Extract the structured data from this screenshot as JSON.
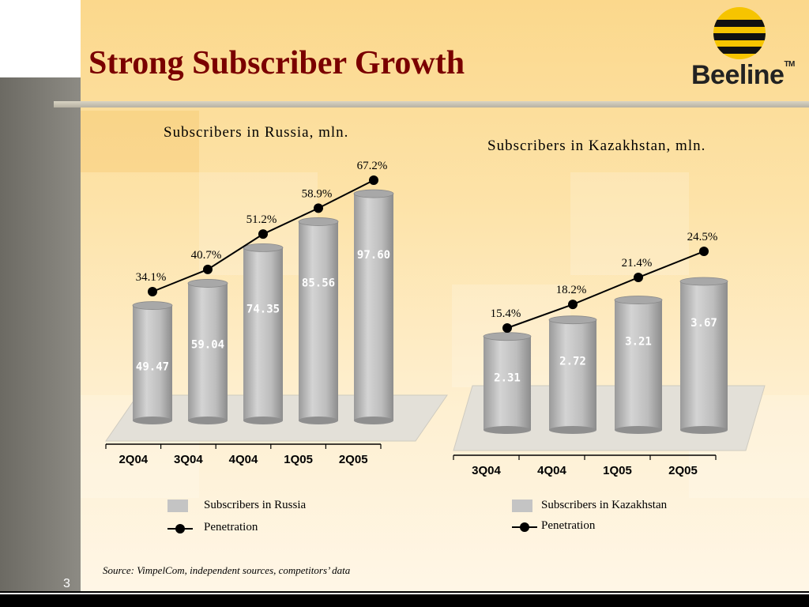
{
  "slide": {
    "title": "Strong Subscriber Growth",
    "page_number": "3",
    "source": "Source: VimpelCom, independent sources, competitors’ data",
    "logo_text": "Beeline",
    "logo_tm": "TM"
  },
  "colors": {
    "title": "#7a0000",
    "bar": "#c4c4c4",
    "line": "#000000"
  },
  "chart_data": [
    {
      "type": "bar",
      "title": "Subscribers in Russia, mln.",
      "categories": [
        "2Q04",
        "3Q04",
        "4Q04",
        "1Q05",
        "2Q05"
      ],
      "series": [
        {
          "name": "Subscribers in Russia",
          "type": "bar",
          "values": [
            49.47,
            59.04,
            74.35,
            85.56,
            97.6
          ],
          "labels": [
            "49.47",
            "59.04",
            "74.35",
            "85.56",
            "97.60"
          ]
        },
        {
          "name": "Penetration",
          "type": "line",
          "values": [
            34.1,
            40.7,
            51.2,
            58.9,
            67.2
          ],
          "labels": [
            "34.1%",
            "40.7%",
            "51.2%",
            "58.9%",
            "67.2%"
          ]
        }
      ],
      "legend": [
        {
          "label": "Subscribers in Russia",
          "kind": "bar"
        },
        {
          "label": "Penetration",
          "kind": "line"
        }
      ],
      "legend_position": "bottom",
      "grid": false
    },
    {
      "type": "bar",
      "title": "Subscribers in Kazakhstan, mln.",
      "categories": [
        "3Q04",
        "4Q04",
        "1Q05",
        "2Q05"
      ],
      "series": [
        {
          "name": "Subscribers in Kazakhstan",
          "type": "bar",
          "values": [
            2.31,
            2.72,
            3.21,
            3.67
          ],
          "labels": [
            "2.31",
            "2.72",
            "3.21",
            "3.67"
          ]
        },
        {
          "name": "Penetration",
          "type": "line",
          "values": [
            15.4,
            18.2,
            21.4,
            24.5
          ],
          "labels": [
            "15.4%",
            "18.2%",
            "21.4%",
            "24.5%"
          ]
        }
      ],
      "legend": [
        {
          "label": "Subscribers in Kazakhstan",
          "kind": "bar"
        },
        {
          "label": "Penetration",
          "kind": "line"
        }
      ],
      "legend_position": "bottom",
      "grid": false
    }
  ]
}
